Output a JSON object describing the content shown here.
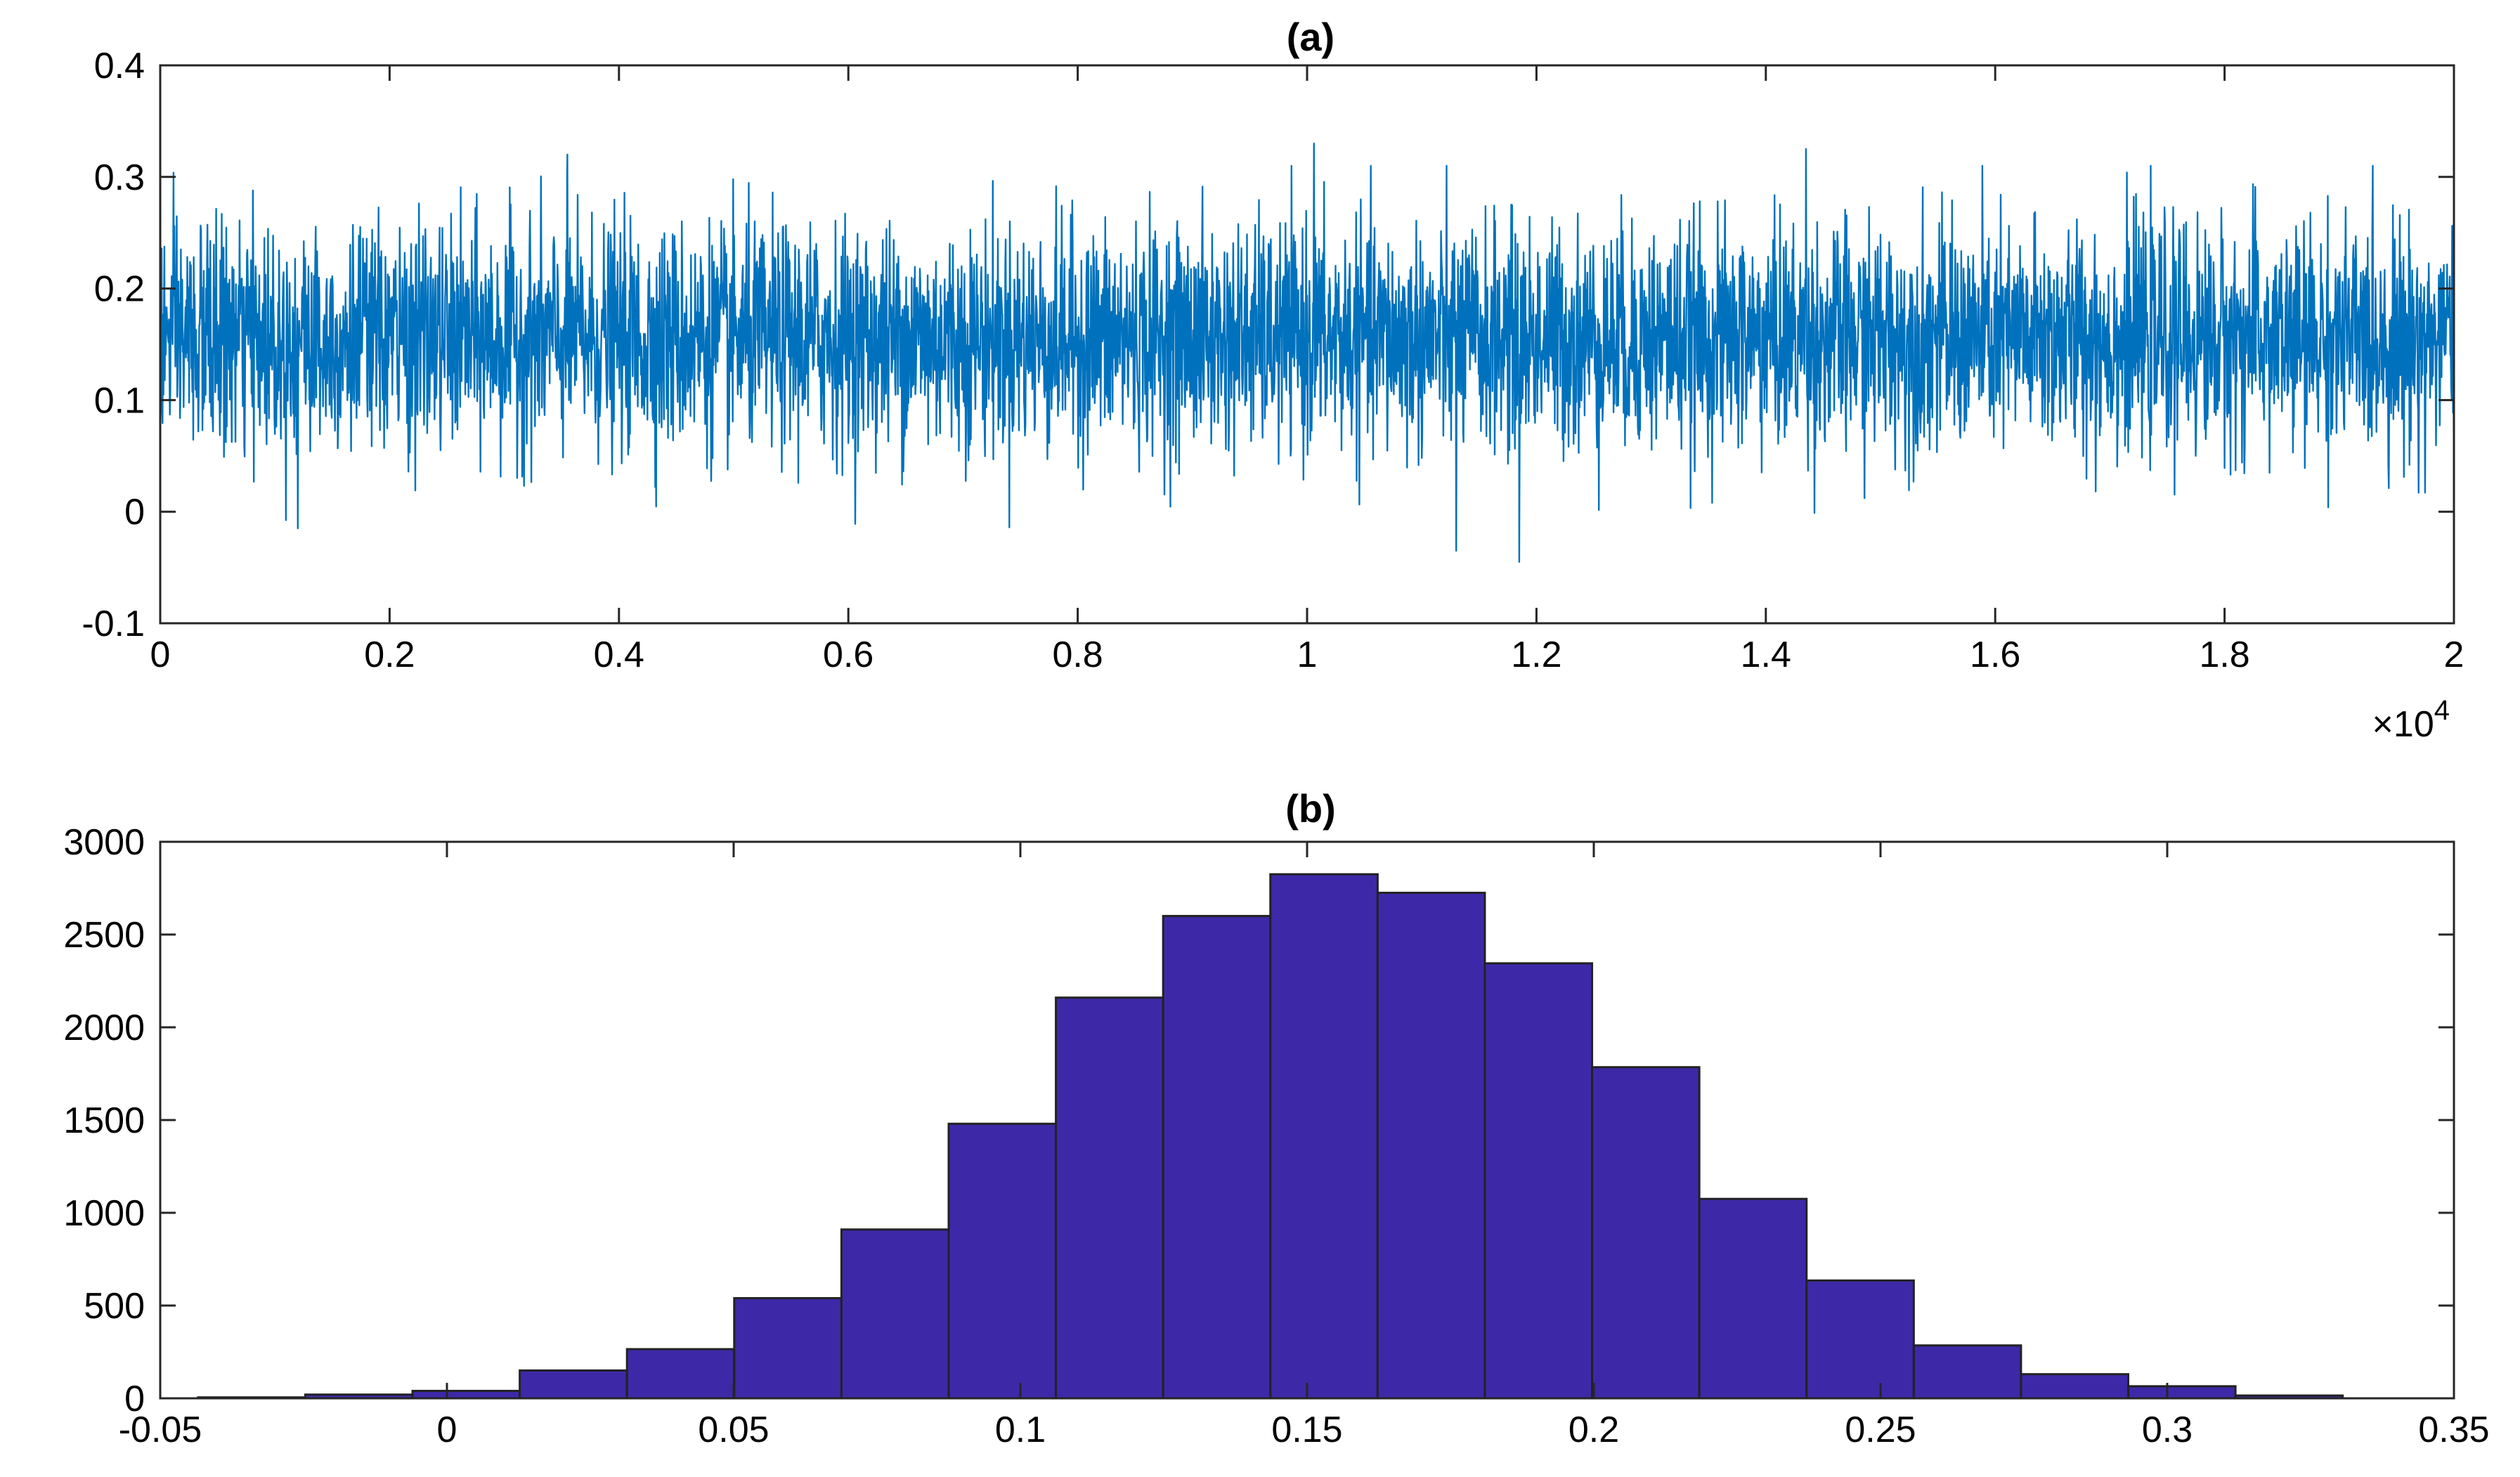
{
  "figure": {
    "background": "#ffffff"
  },
  "chart_data": [
    {
      "type": "line",
      "title": "(a)",
      "xlabel": "",
      "ylabel": "",
      "xlim": [
        0,
        20000
      ],
      "ylim": [
        -0.1,
        0.4
      ],
      "x_ticks": [
        0,
        2000,
        4000,
        6000,
        8000,
        10000,
        12000,
        14000,
        16000,
        18000,
        20000
      ],
      "x_tick_labels": [
        "0",
        "0.2",
        "0.4",
        "0.6",
        "0.8",
        "1",
        "1.2",
        "1.4",
        "1.6",
        "1.8",
        "2"
      ],
      "x_exponent_label": "×10",
      "x_exponent_power": "4",
      "y_ticks": [
        -0.1,
        0,
        0.1,
        0.2,
        0.3,
        0.4
      ],
      "y_tick_labels": [
        "-0.1",
        "0",
        "0.1",
        "0.2",
        "0.3",
        "0.4"
      ],
      "color": "#0072bd",
      "series": [
        {
          "n_points": 20000,
          "mean": 0.155,
          "std": 0.05,
          "min": -0.045,
          "max": 0.33,
          "notable_points": [
            {
              "x": 10060,
              "y": 0.33
            },
            {
              "x": 14350,
              "y": 0.325
            },
            {
              "x": 3550,
              "y": 0.32
            },
            {
              "x": 11850,
              "y": -0.045
            },
            {
              "x": 11300,
              "y": -0.035
            },
            {
              "x": 1200,
              "y": -0.015
            }
          ]
        }
      ]
    },
    {
      "type": "bar",
      "subtype": "histogram",
      "title": "(b)",
      "xlabel": "",
      "ylabel": "",
      "xlim": [
        -0.05,
        0.35
      ],
      "ylim": [
        0,
        3000
      ],
      "x_ticks": [
        -0.05,
        0,
        0.05,
        0.1,
        0.15,
        0.2,
        0.25,
        0.3,
        0.35
      ],
      "x_tick_labels": [
        "-0.05",
        "0",
        "0.05",
        "0.1",
        "0.15",
        "0.2",
        "0.25",
        "0.3",
        "0.35"
      ],
      "y_ticks": [
        0,
        500,
        1000,
        1500,
        2000,
        2500,
        3000
      ],
      "y_tick_labels": [
        "0",
        "500",
        "1000",
        "1500",
        "2000",
        "2500",
        "3000"
      ],
      "color": "#3d29a8",
      "bin_edges": [
        -0.0434,
        -0.0247,
        -0.006,
        0.0127,
        0.0314,
        0.0501,
        0.0688,
        0.0875,
        0.1062,
        0.1249,
        0.1436,
        0.1623,
        0.181,
        0.1997,
        0.2184,
        0.2371,
        0.2558,
        0.2745,
        0.2932,
        0.3119,
        0.3306
      ],
      "values": [
        5,
        20,
        40,
        150,
        265,
        540,
        910,
        1480,
        2160,
        2600,
        2825,
        2725,
        2345,
        1785,
        1075,
        635,
        285,
        130,
        65,
        15
      ]
    }
  ]
}
